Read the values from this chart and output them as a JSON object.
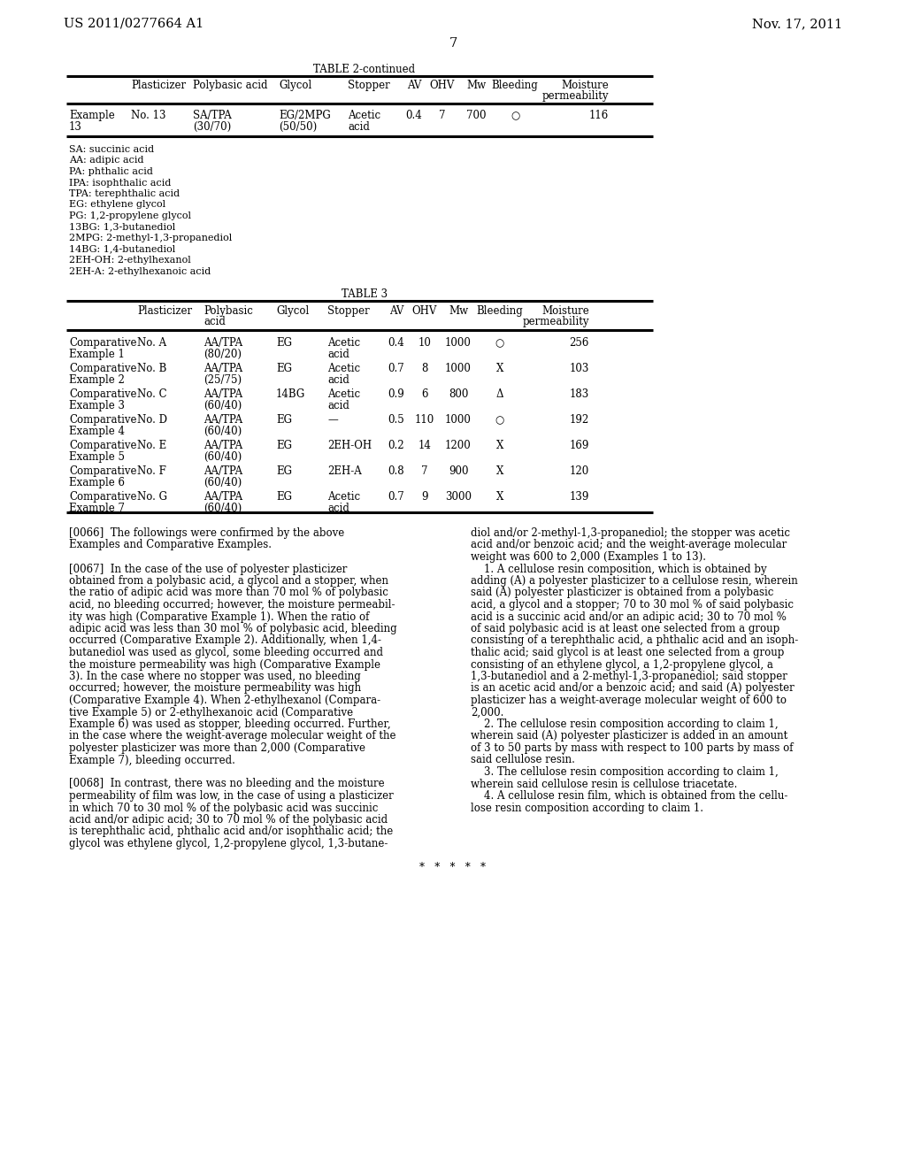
{
  "header_left": "US 2011/0277664 A1",
  "header_right": "Nov. 17, 2011",
  "page_number": "7",
  "table2_title": "TABLE 2-continued",
  "table2_footnotes": [
    "SA: succinic acid",
    "AA: adipic acid",
    "PA: phthalic acid",
    "IPA: isophthalic acid",
    "TPA: terephthalic acid",
    "EG: ethylene glycol",
    "PG: 1,2-propylene glycol",
    "13BG: 1,3-butanediol",
    "2MPG: 2-methyl-1,3-propanediol",
    "14BG: 1,4-butanediol",
    "2EH-OH: 2-ethylhexanol",
    "2EH-A: 2-ethylhexanoic acid"
  ],
  "table3_title": "TABLE 3",
  "left_body_lines": [
    "[0066]  The followings were confirmed by the above",
    "Examples and Comparative Examples.",
    "",
    "[0067]  In the case of the use of polyester plasticizer",
    "obtained from a polybasic acid, a glycol and a stopper, when",
    "the ratio of adipic acid was more than 70 mol % of polybasic",
    "acid, no bleeding occurred; however, the moisture permeabil-",
    "ity was high (Comparative Example 1). When the ratio of",
    "adipic acid was less than 30 mol % of polybasic acid, bleeding",
    "occurred (Comparative Example 2). Additionally, when 1,4-",
    "butanediol was used as glycol, some bleeding occurred and",
    "the moisture permeability was high (Comparative Example",
    "3). In the case where no stopper was used, no bleeding",
    "occurred; however, the moisture permeability was high",
    "(Comparative Example 4). When 2-ethylhexanol (Compara-",
    "tive Example 5) or 2-ethylhexanoic acid (Comparative",
    "Example 6) was used as stopper, bleeding occurred. Further,",
    "in the case where the weight-average molecular weight of the",
    "polyester plasticizer was more than 2,000 (Comparative",
    "Example 7), bleeding occurred.",
    "",
    "[0068]  In contrast, there was no bleeding and the moisture",
    "permeability of film was low, in the case of using a plasticizer",
    "in which 70 to 30 mol % of the polybasic acid was succinic",
    "acid and/or adipic acid; 30 to 70 mol % of the polybasic acid",
    "is terephthalic acid, phthalic acid and/or isophthalic acid; the",
    "glycol was ethylene glycol, 1,2-propylene glycol, 1,3-butane-"
  ],
  "right_body_lines": [
    "diol and/or 2-methyl-1,3-propanediol; the stopper was acetic",
    "acid and/or benzoic acid; and the weight-average molecular",
    "weight was 600 to 2,000 (Examples 1 to 13).",
    "    1. A cellulose resin composition, which is obtained by",
    "adding (A) a polyester plasticizer to a cellulose resin, wherein",
    "said (A) polyester plasticizer is obtained from a polybasic",
    "acid, a glycol and a stopper; 70 to 30 mol % of said polybasic",
    "acid is a succinic acid and/or an adipic acid; 30 to 70 mol %",
    "of said polybasic acid is at least one selected from a group",
    "consisting of a terephthalic acid, a phthalic acid and an isoph-",
    "thalic acid; said glycol is at least one selected from a group",
    "consisting of an ethylene glycol, a 1,2-propylene glycol, a",
    "1,3-butanediol and a 2-methyl-1,3-propanediol; said stopper",
    "is an acetic acid and/or a benzoic acid; and said (A) polyester",
    "plasticizer has a weight-average molecular weight of 600 to",
    "2,000.",
    "    2. The cellulose resin composition according to claim 1,",
    "wherein said (A) polyester plasticizer is added in an amount",
    "of 3 to 50 parts by mass with respect to 100 parts by mass of",
    "said cellulose resin.",
    "    3. The cellulose resin composition according to claim 1,",
    "wherein said cellulose resin is cellulose triacetate.",
    "    4. A cellulose resin film, which is obtained from the cellu-",
    "lose resin composition according to claim 1."
  ]
}
